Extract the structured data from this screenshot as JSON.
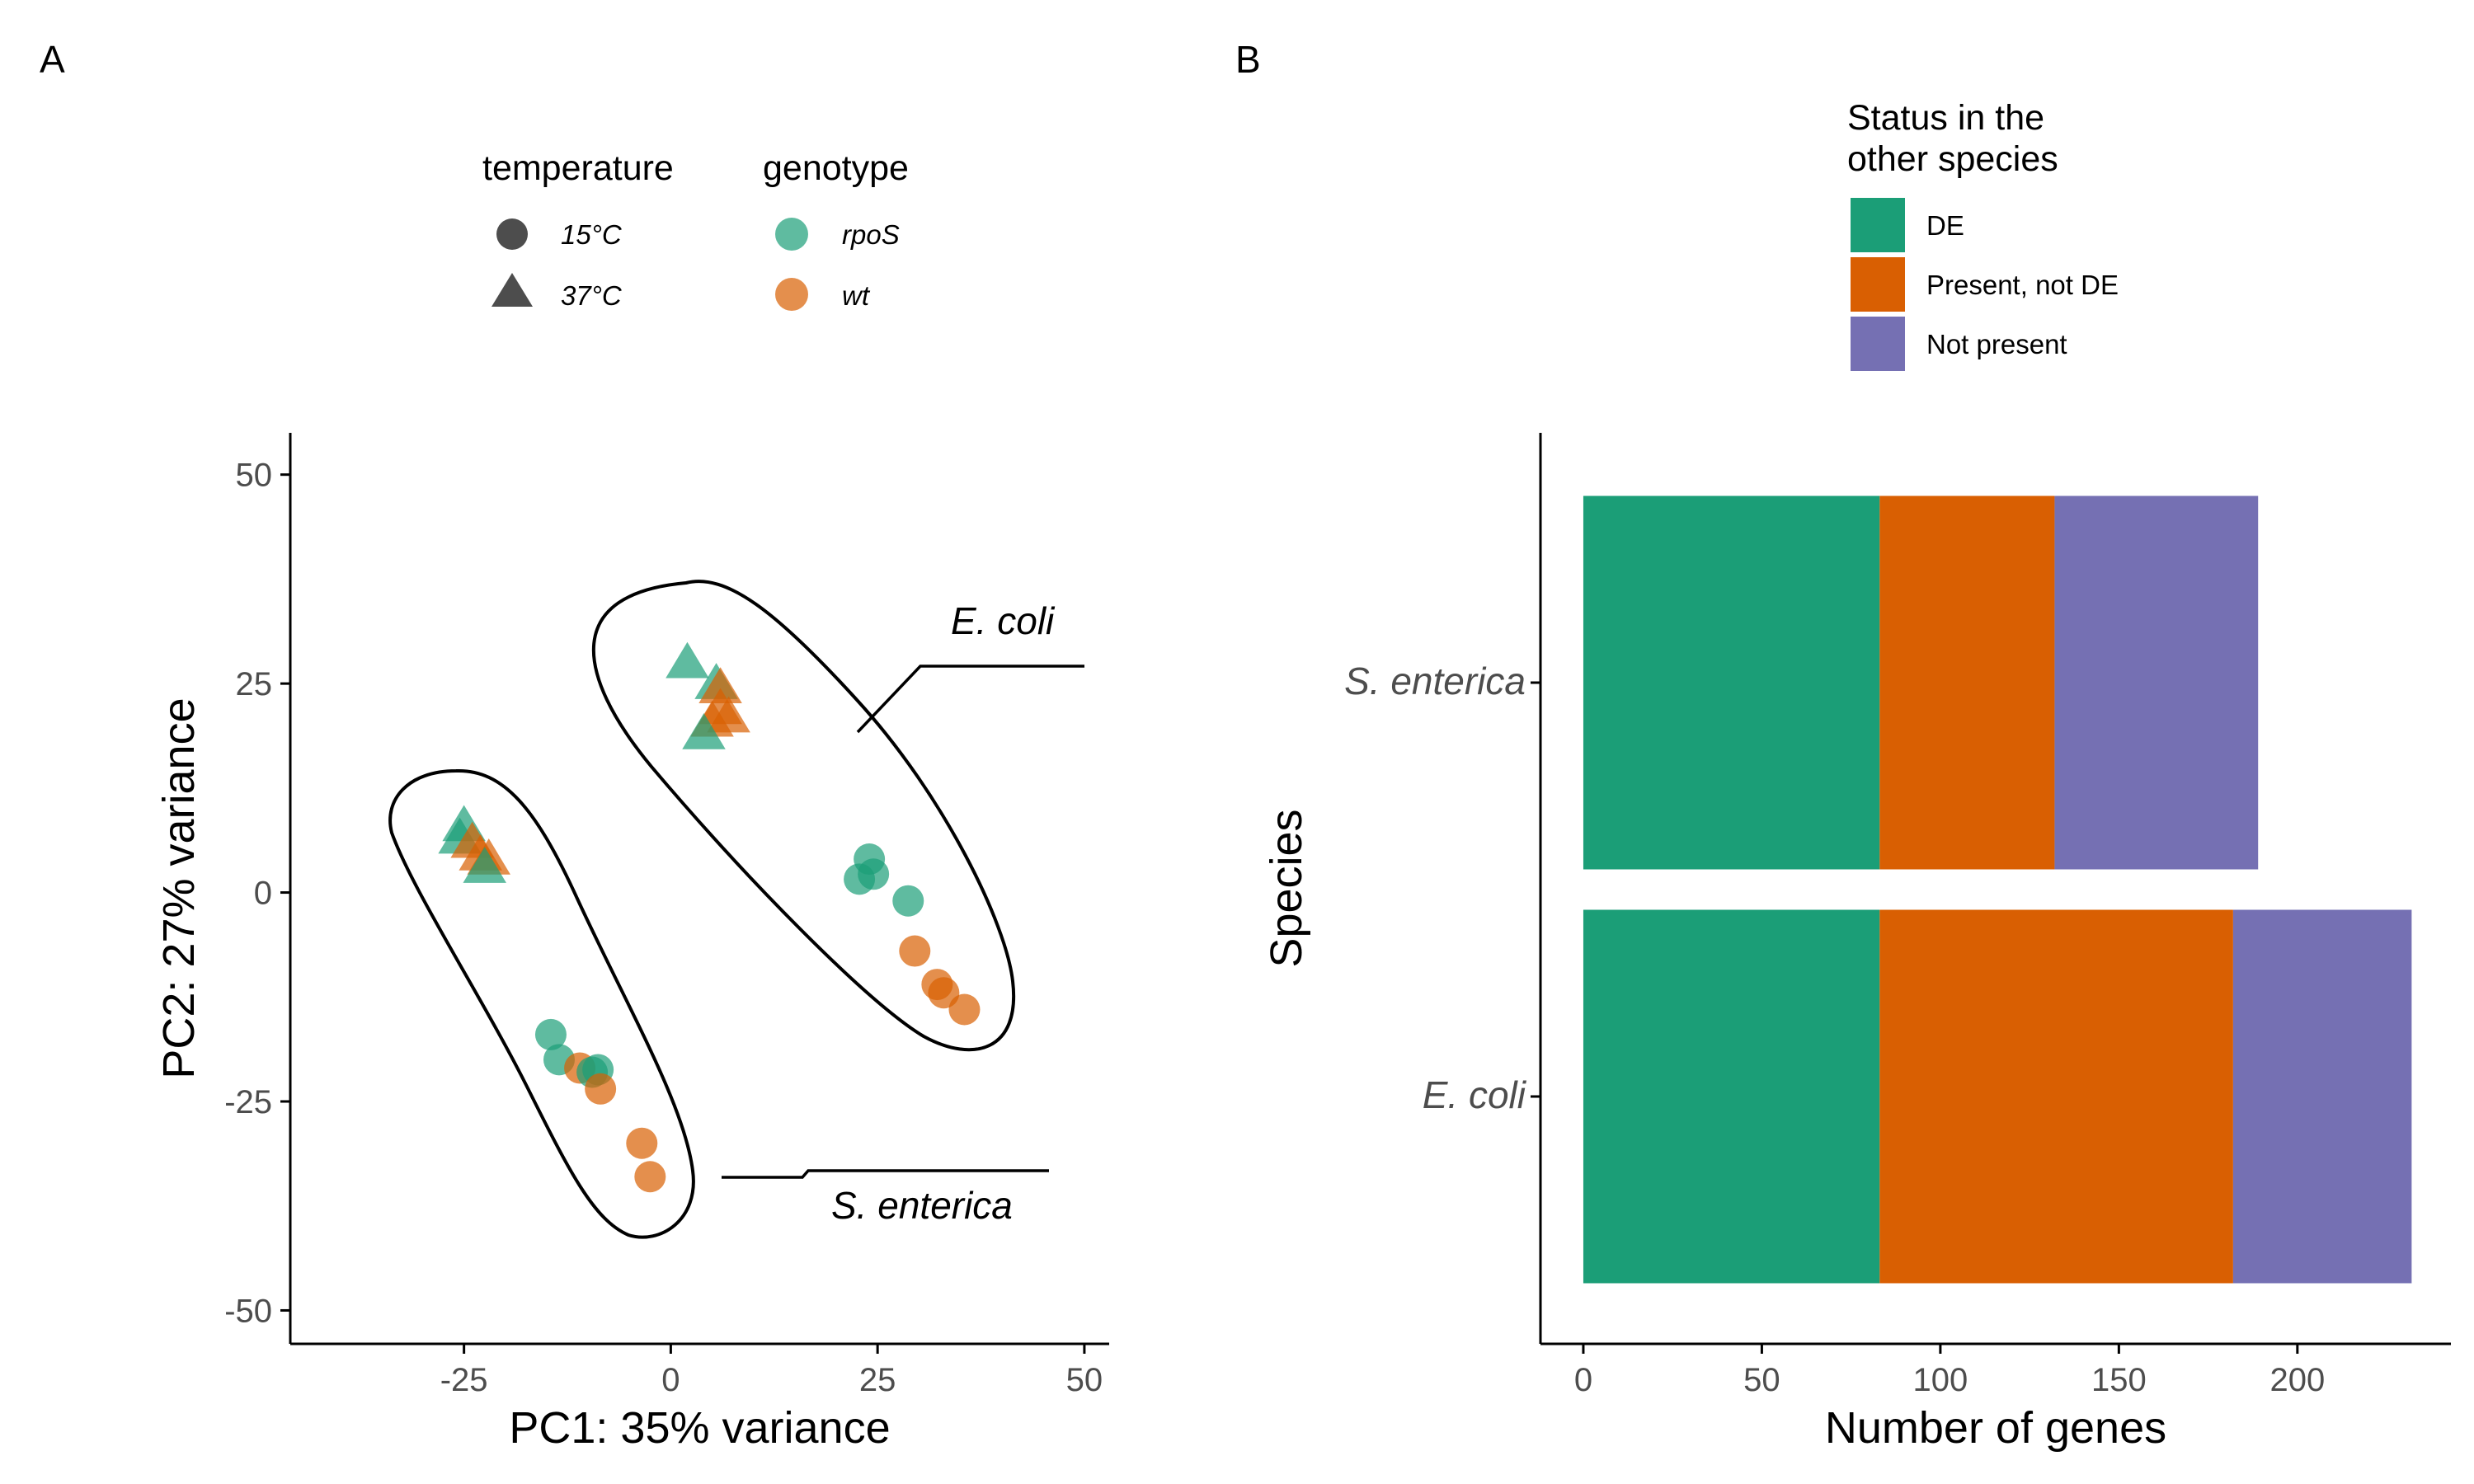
{
  "colors": {
    "rpoS": "#1b9e77",
    "wt": "#d95f02",
    "DE": "#1b9e77",
    "Present, not DE": "#d95f02",
    "Not present": "#7570b3",
    "axis": "#000000",
    "tick_text": "#4d4d4d",
    "legend_shape": "#4d4d4d"
  },
  "panel_a": {
    "panel_label": "A",
    "legend": {
      "temperature": {
        "title": "temperature",
        "items": [
          {
            "label": "15°C",
            "shape": "circle"
          },
          {
            "label": "37°C",
            "shape": "triangle"
          }
        ]
      },
      "genotype": {
        "title": "genotype",
        "items": [
          {
            "label": "rpoS",
            "color_key": "rpoS"
          },
          {
            "label": "wt",
            "color_key": "wt"
          }
        ]
      }
    },
    "annotations": {
      "ecoli": "E. coli",
      "senterica": "S. enterica"
    }
  },
  "panel_b": {
    "panel_label": "B",
    "legend": {
      "title_line1": "Status in the",
      "title_line2": "other species",
      "items": [
        {
          "label": "DE"
        },
        {
          "label": "Present, not DE"
        },
        {
          "label": "Not present"
        }
      ]
    }
  },
  "chart_data": [
    {
      "type": "scatter",
      "title": "",
      "xlabel": "PC1: 35% variance",
      "ylabel": "PC2: 27% variance",
      "xlim": [
        -46,
        53
      ],
      "ylim": [
        -54,
        55
      ],
      "xticks": [
        -25,
        0,
        25,
        50
      ],
      "yticks": [
        -50,
        -25,
        0,
        25,
        50
      ],
      "xtick_labels": [
        "-25",
        "0",
        "25",
        "50"
      ],
      "ytick_labels": [
        "-50",
        "-25",
        "0",
        "25",
        "50"
      ],
      "grid": false,
      "legend_position": "top",
      "points": [
        {
          "x": 2,
          "y": 27.5,
          "temperature": "37°C",
          "genotype": "rpoS"
        },
        {
          "x": 5.5,
          "y": 25,
          "temperature": "37°C",
          "genotype": "rpoS"
        },
        {
          "x": 6,
          "y": 24.5,
          "temperature": "37°C",
          "genotype": "wt"
        },
        {
          "x": 6,
          "y": 22,
          "temperature": "37°C",
          "genotype": "wt"
        },
        {
          "x": 7,
          "y": 21,
          "temperature": "37°C",
          "genotype": "wt"
        },
        {
          "x": 5,
          "y": 20.5,
          "temperature": "37°C",
          "genotype": "wt"
        },
        {
          "x": 4,
          "y": 19,
          "temperature": "37°C",
          "genotype": "rpoS"
        },
        {
          "x": -25,
          "y": 8,
          "temperature": "37°C",
          "genotype": "rpoS"
        },
        {
          "x": -25.5,
          "y": 6.5,
          "temperature": "37°C",
          "genotype": "rpoS"
        },
        {
          "x": -24,
          "y": 6,
          "temperature": "37°C",
          "genotype": "wt"
        },
        {
          "x": -23,
          "y": 4.5,
          "temperature": "37°C",
          "genotype": "wt"
        },
        {
          "x": -22,
          "y": 4,
          "temperature": "37°C",
          "genotype": "wt"
        },
        {
          "x": -22.5,
          "y": 3,
          "temperature": "37°C",
          "genotype": "rpoS"
        },
        {
          "x": 24,
          "y": 4,
          "temperature": "15°C",
          "genotype": "rpoS"
        },
        {
          "x": 24.5,
          "y": 2.2,
          "temperature": "15°C",
          "genotype": "rpoS"
        },
        {
          "x": 22.8,
          "y": 1.6,
          "temperature": "15°C",
          "genotype": "rpoS"
        },
        {
          "x": 28.7,
          "y": -1,
          "temperature": "15°C",
          "genotype": "rpoS"
        },
        {
          "x": 29.5,
          "y": -7,
          "temperature": "15°C",
          "genotype": "wt"
        },
        {
          "x": 32.2,
          "y": -11,
          "temperature": "15°C",
          "genotype": "wt"
        },
        {
          "x": 33,
          "y": -12,
          "temperature": "15°C",
          "genotype": "wt"
        },
        {
          "x": 35.5,
          "y": -14,
          "temperature": "15°C",
          "genotype": "wt"
        },
        {
          "x": -14.5,
          "y": -17,
          "temperature": "15°C",
          "genotype": "rpoS"
        },
        {
          "x": -13.5,
          "y": -20,
          "temperature": "15°C",
          "genotype": "rpoS"
        },
        {
          "x": -11,
          "y": -21,
          "temperature": "15°C",
          "genotype": "wt"
        },
        {
          "x": -9.5,
          "y": -21.5,
          "temperature": "15°C",
          "genotype": "rpoS"
        },
        {
          "x": -8.8,
          "y": -21.2,
          "temperature": "15°C",
          "genotype": "rpoS"
        },
        {
          "x": -8.5,
          "y": -23.5,
          "temperature": "15°C",
          "genotype": "wt"
        },
        {
          "x": -3.5,
          "y": -30,
          "temperature": "15°C",
          "genotype": "wt"
        },
        {
          "x": -2.5,
          "y": -34,
          "temperature": "15°C",
          "genotype": "wt"
        }
      ],
      "annotation_labels": [
        "E. coli",
        "S. enterica"
      ]
    },
    {
      "type": "bar",
      "orientation": "horizontal",
      "stacked": true,
      "title": "",
      "xlabel": "Number of genes",
      "ylabel": "Species",
      "categories": [
        "S. enterica",
        "E. coli"
      ],
      "xlim": [
        -12,
        243
      ],
      "xticks": [
        0,
        50,
        100,
        150,
        200
      ],
      "xtick_labels": [
        "0",
        "50",
        "100",
        "150",
        "200"
      ],
      "grid": false,
      "legend_position": "top",
      "series": [
        {
          "name": "DE",
          "values": [
            83,
            83
          ]
        },
        {
          "name": "Present, not DE",
          "values": [
            49,
            99
          ]
        },
        {
          "name": "Not present",
          "values": [
            57,
            50
          ]
        }
      ]
    }
  ]
}
